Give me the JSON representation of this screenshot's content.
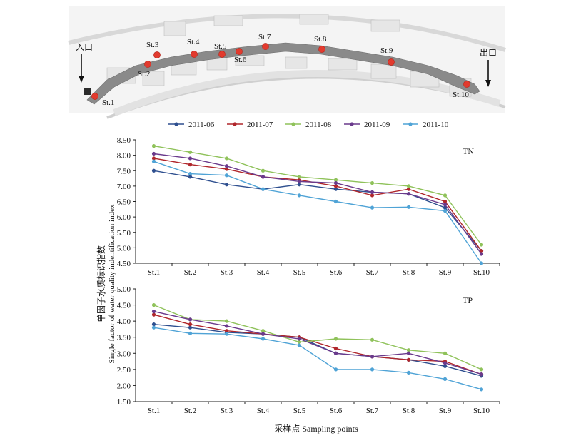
{
  "map": {
    "entrance_label": "入口",
    "exit_label": "出口",
    "stations": [
      {
        "label": "St.1"
      },
      {
        "label": "St.2"
      },
      {
        "label": "St.3"
      },
      {
        "label": "St.4"
      },
      {
        "label": "St.5"
      },
      {
        "label": "St.6"
      },
      {
        "label": "St.7"
      },
      {
        "label": "St.8"
      },
      {
        "label": "St.9"
      },
      {
        "label": "St.10"
      }
    ],
    "station_marker_color": "#e23a2e"
  },
  "legend": {
    "placement": "top-center",
    "entries": [
      "2011-06",
      "2011-07",
      "2011-08",
      "2011-09",
      "2011-10"
    ]
  },
  "ylabel_cn": "单因子水质标识指数",
  "ylabel_en": "Single factor of water quality indentification index",
  "xlabel": "采样点 Sampling points",
  "chart_data": [
    {
      "type": "line",
      "title": "TN",
      "categories": [
        "St.1",
        "St.2",
        "St.3",
        "St.4",
        "St.5",
        "St.6",
        "St.7",
        "St.8",
        "St.9",
        "St.10"
      ],
      "ylim": [
        4.5,
        8.5
      ],
      "yticks": [
        "4.50",
        "5.00",
        "5.50",
        "6.00",
        "6.50",
        "7.00",
        "7.50",
        "8.00",
        "8.50"
      ],
      "grid": false,
      "series": [
        {
          "name": "2011-06",
          "color": "#2e4f8f",
          "values": [
            7.5,
            7.3,
            7.05,
            6.9,
            7.05,
            6.9,
            6.8,
            6.75,
            6.3,
            4.9
          ]
        },
        {
          "name": "2011-07",
          "color": "#b0262b",
          "values": [
            7.9,
            7.7,
            7.55,
            7.3,
            7.2,
            7.0,
            6.7,
            6.9,
            6.5,
            4.9
          ]
        },
        {
          "name": "2011-08",
          "color": "#8fc25a",
          "values": [
            8.3,
            8.1,
            7.9,
            7.5,
            7.3,
            7.2,
            7.1,
            7.0,
            6.7,
            5.1
          ]
        },
        {
          "name": "2011-09",
          "color": "#6a3a8c",
          "values": [
            8.05,
            7.9,
            7.65,
            7.3,
            7.15,
            7.1,
            6.8,
            6.75,
            6.4,
            4.8
          ]
        },
        {
          "name": "2011-10",
          "color": "#4fa3d6",
          "values": [
            7.8,
            7.4,
            7.35,
            6.9,
            6.7,
            6.5,
            6.3,
            6.32,
            6.2,
            4.5
          ]
        }
      ]
    },
    {
      "type": "line",
      "title": "TP",
      "categories": [
        "St.1",
        "St.2",
        "St.3",
        "St.4",
        "St.5",
        "St.6",
        "St.7",
        "St.8",
        "St.9",
        "St.10"
      ],
      "ylim": [
        1.5,
        5.0
      ],
      "yticks": [
        "1.50",
        "2.00",
        "2.50",
        "3.00",
        "3.50",
        "4.00",
        "4.50",
        "5.00"
      ],
      "grid": false,
      "series": [
        {
          "name": "2011-06",
          "color": "#2e4f8f",
          "values": [
            3.9,
            3.8,
            3.65,
            3.6,
            3.5,
            3.0,
            2.9,
            2.8,
            2.6,
            2.3
          ]
        },
        {
          "name": "2011-07",
          "color": "#b0262b",
          "values": [
            4.2,
            3.9,
            3.7,
            3.6,
            3.5,
            3.15,
            2.9,
            2.8,
            2.75,
            2.35
          ]
        },
        {
          "name": "2011-08",
          "color": "#8fc25a",
          "values": [
            4.5,
            4.05,
            4.0,
            3.7,
            3.35,
            3.45,
            3.42,
            3.1,
            3.0,
            2.5
          ]
        },
        {
          "name": "2011-09",
          "color": "#6a3a8c",
          "values": [
            4.3,
            4.05,
            3.85,
            3.6,
            3.45,
            3.0,
            2.9,
            3.0,
            2.7,
            2.35
          ]
        },
        {
          "name": "2011-10",
          "color": "#4fa3d6",
          "values": [
            3.8,
            3.62,
            3.6,
            3.45,
            3.25,
            2.5,
            2.5,
            2.4,
            2.2,
            1.88
          ]
        }
      ]
    }
  ]
}
